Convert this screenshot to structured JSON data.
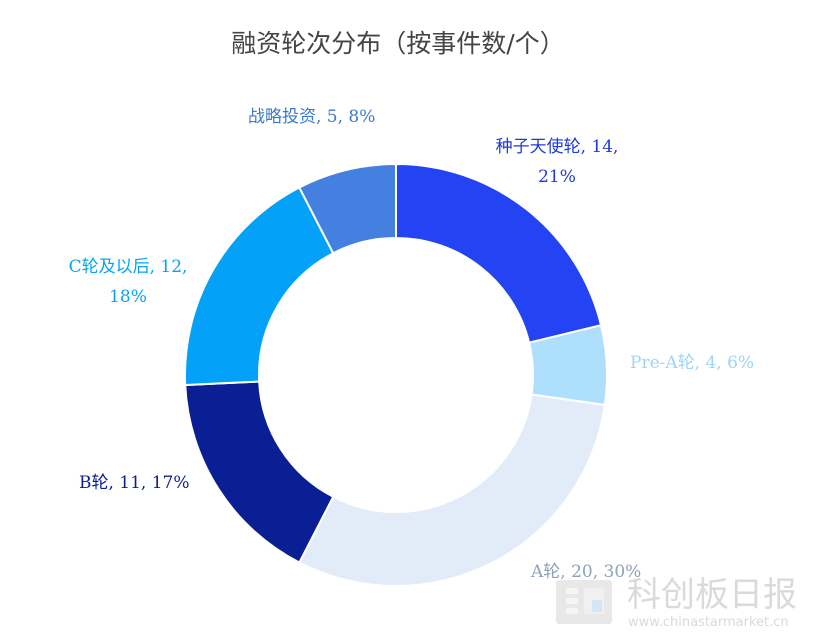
{
  "chart_data": {
    "type": "pie",
    "donut": true,
    "title": "融资轮次分布（按事件数/个）",
    "slices": [
      {
        "name": "种子天使轮",
        "value": 14,
        "percent": "21%",
        "label_lines": [
          "种子天使轮, 14,",
          "21%"
        ],
        "color": "#2443f2",
        "label_color": "#1f3ad8"
      },
      {
        "name": "Pre-A轮",
        "value": 4,
        "percent": "6%",
        "label_lines": [
          "Pre-A轮, 4, 6%"
        ],
        "color": "#aedffc",
        "label_color": "#9ed4f7"
      },
      {
        "name": "A轮",
        "value": 20,
        "percent": "30%",
        "label_lines": [
          "A轮, 20, 30%"
        ],
        "color": "#e2ecf8",
        "label_color": "#8ea2bc"
      },
      {
        "name": "B轮",
        "value": 11,
        "percent": "17%",
        "label_lines": [
          "B轮, 11, 17%"
        ],
        "color": "#0b1f94",
        "label_color": "#0b1f94"
      },
      {
        "name": "C轮及以后",
        "value": 12,
        "percent": "18%",
        "label_lines": [
          "C轮及以后, 12,",
          "18%"
        ],
        "color": "#04a1f9",
        "label_color": "#07a4f4"
      },
      {
        "name": "战略投资",
        "value": 5,
        "percent": "8%",
        "label_lines": [
          "战略投资, 5, 8%"
        ],
        "color": "#4380e0",
        "label_color": "#3b79cf"
      }
    ]
  },
  "watermark": {
    "brand": "科创板日报",
    "url": "www.chinastarmarket.cn"
  }
}
